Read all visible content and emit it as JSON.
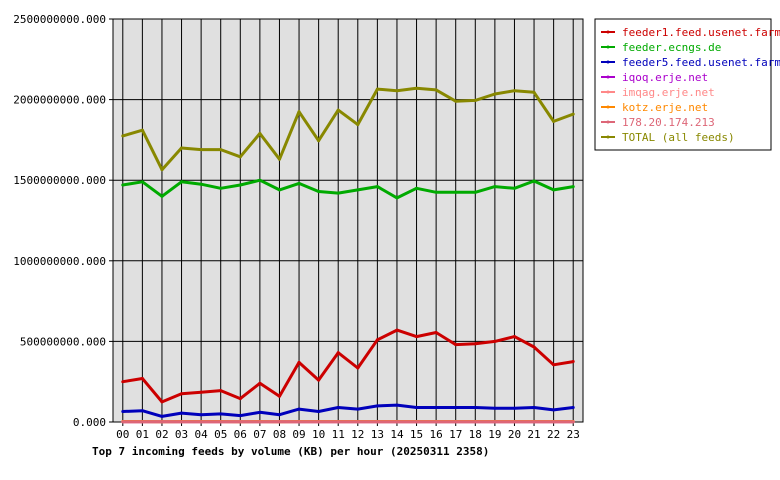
{
  "chart_data": {
    "type": "line",
    "title": "Top 7 incoming feeds by volume (KB) per hour (20250311 2358)",
    "xlabel": "",
    "ylabel": "",
    "categories": [
      "00",
      "01",
      "02",
      "03",
      "04",
      "05",
      "06",
      "07",
      "08",
      "09",
      "10",
      "11",
      "12",
      "13",
      "14",
      "15",
      "16",
      "17",
      "18",
      "19",
      "20",
      "21",
      "22",
      "23"
    ],
    "ylim": [
      0,
      2500000000
    ],
    "yticks": [
      "0.000",
      "500000000.000",
      "1000000000.000",
      "1500000000.000",
      "2000000000.000",
      "2500000000.000"
    ],
    "grid": true,
    "legend_position": "right",
    "series": [
      {
        "name": "feeder1.feed.usenet.farm",
        "color": "#cc0000",
        "values": [
          250000000,
          270000000,
          125000000,
          175000000,
          185000000,
          195000000,
          145000000,
          240000000,
          160000000,
          370000000,
          260000000,
          430000000,
          335000000,
          510000000,
          570000000,
          530000000,
          555000000,
          480000000,
          485000000,
          500000000,
          530000000,
          465000000,
          355000000,
          375000000
        ]
      },
      {
        "name": "feeder.ecngs.de",
        "color": "#00aa00",
        "values": [
          1470000000,
          1490000000,
          1400000000,
          1490000000,
          1475000000,
          1450000000,
          1470000000,
          1500000000,
          1440000000,
          1480000000,
          1430000000,
          1420000000,
          1440000000,
          1460000000,
          1390000000,
          1450000000,
          1425000000,
          1425000000,
          1425000000,
          1460000000,
          1450000000,
          1495000000,
          1440000000,
          1460000000
        ]
      },
      {
        "name": "feeder5.feed.usenet.farm",
        "color": "#0000bb",
        "values": [
          65000000,
          70000000,
          35000000,
          55000000,
          45000000,
          50000000,
          40000000,
          60000000,
          45000000,
          80000000,
          65000000,
          90000000,
          80000000,
          100000000,
          105000000,
          90000000,
          90000000,
          90000000,
          90000000,
          85000000,
          85000000,
          90000000,
          75000000,
          90000000
        ]
      },
      {
        "name": "iqoq.erje.net",
        "color": "#aa00cc",
        "values": [
          2000000,
          2000000,
          1000000,
          2000000,
          2000000,
          2000000,
          1000000,
          2000000,
          1000000,
          2000000,
          2000000,
          2000000,
          2000000,
          2000000,
          2000000,
          2000000,
          2000000,
          2000000,
          2000000,
          2000000,
          2000000,
          2000000,
          2000000,
          2000000
        ]
      },
      {
        "name": "imqag.erje.net",
        "color": "#ff8888",
        "values": [
          2000000,
          2000000,
          1000000,
          2000000,
          2000000,
          2000000,
          1000000,
          2000000,
          1000000,
          2000000,
          2000000,
          2000000,
          2000000,
          2000000,
          2000000,
          2000000,
          2000000,
          2000000,
          2000000,
          2000000,
          2000000,
          2000000,
          2000000,
          2000000
        ]
      },
      {
        "name": "kotz.erje.net",
        "color": "#ff8800",
        "values": [
          3000000,
          3000000,
          2000000,
          3000000,
          3000000,
          3000000,
          2000000,
          3000000,
          2000000,
          3000000,
          3000000,
          3000000,
          3000000,
          3000000,
          3000000,
          3000000,
          3000000,
          3000000,
          3000000,
          3000000,
          3000000,
          3000000,
          3000000,
          3000000
        ]
      },
      {
        "name": "178.20.174.213",
        "color": "#dd6677",
        "values": [
          1000000,
          1000000,
          1000000,
          1000000,
          1000000,
          1000000,
          1000000,
          1000000,
          1000000,
          1000000,
          1000000,
          1000000,
          1000000,
          1000000,
          1000000,
          1000000,
          1000000,
          1000000,
          1000000,
          1000000,
          1000000,
          1000000,
          1000000,
          1000000
        ]
      },
      {
        "name": "TOTAL (all feeds)",
        "color": "#888800",
        "values": [
          1775000000,
          1810000000,
          1565000000,
          1700000000,
          1690000000,
          1690000000,
          1645000000,
          1790000000,
          1630000000,
          1925000000,
          1745000000,
          1935000000,
          1845000000,
          2065000000,
          2055000000,
          2070000000,
          2060000000,
          1990000000,
          1995000000,
          2035000000,
          2055000000,
          2045000000,
          1865000000,
          1910000000
        ]
      }
    ]
  }
}
